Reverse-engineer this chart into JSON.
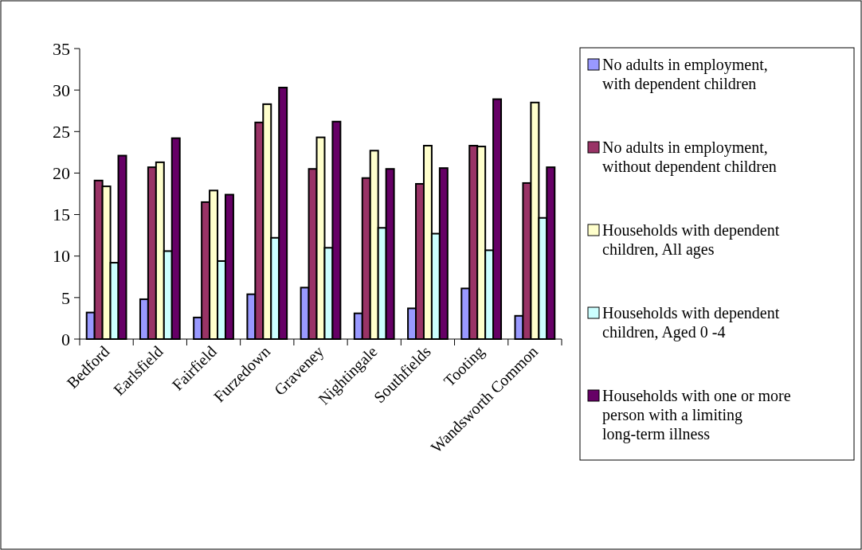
{
  "chart_data": {
    "type": "bar",
    "categories": [
      "Bedford",
      "Earlsfield",
      "Fairfield",
      "Furzedown",
      "Graveney",
      "Nightingale",
      "Southfields",
      "Tooting",
      "Wandsworth Common"
    ],
    "series": [
      {
        "name": "No adults in employment, with dependent children",
        "color": "#9999ff",
        "values": [
          3.2,
          4.8,
          2.6,
          5.4,
          6.2,
          3.1,
          3.7,
          6.1,
          2.8
        ]
      },
      {
        "name": "No adults in employment, without dependent children",
        "color": "#993366",
        "values": [
          19.1,
          20.7,
          16.5,
          26.1,
          20.5,
          19.4,
          18.7,
          23.3,
          18.8
        ]
      },
      {
        "name": "Households with dependent children, All ages",
        "color": "#ffffcc",
        "values": [
          18.4,
          21.3,
          17.9,
          28.3,
          24.3,
          22.7,
          23.3,
          23.2,
          28.5
        ]
      },
      {
        "name": "Households with dependent children, Aged 0 -4",
        "color": "#ccffff",
        "values": [
          9.2,
          10.6,
          9.4,
          12.2,
          11.0,
          13.4,
          12.7,
          10.7,
          14.6
        ]
      },
      {
        "name": "Households with one or more person with a limiting long-term illness",
        "color": "#660066",
        "values": [
          22.1,
          24.2,
          17.4,
          30.3,
          26.2,
          20.5,
          20.6,
          28.9,
          20.7
        ]
      }
    ],
    "ylim": [
      0,
      35
    ],
    "yticks": [
      0,
      5,
      10,
      15,
      20,
      25,
      30,
      35
    ],
    "grid": false,
    "legend": "right"
  }
}
